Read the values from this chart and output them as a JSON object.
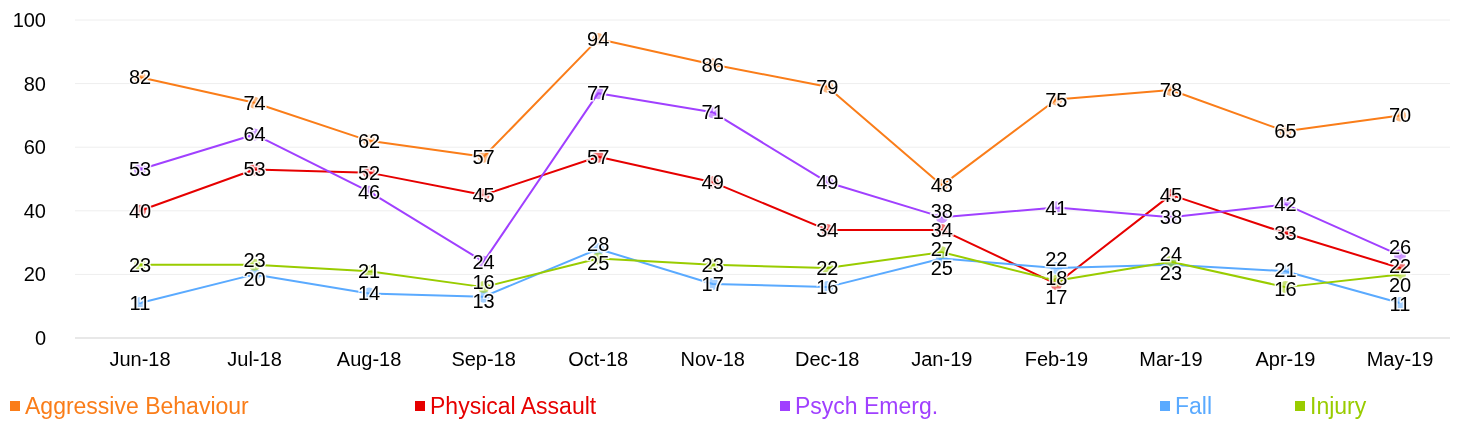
{
  "chart_data": {
    "type": "line",
    "categories": [
      "Jun-18",
      "Jul-18",
      "Aug-18",
      "Sep-18",
      "Oct-18",
      "Nov-18",
      "Dec-18",
      "Jan-19",
      "Feb-19",
      "Mar-19",
      "Apr-19",
      "May-19"
    ],
    "series": [
      {
        "name": "Aggressive Behaviour",
        "color": "#fa7d19",
        "values": [
          82,
          74,
          62,
          57,
          94,
          86,
          79,
          48,
          75,
          78,
          65,
          70
        ]
      },
      {
        "name": "Physical Assault",
        "color": "#e60000",
        "values": [
          40,
          53,
          52,
          45,
          57,
          49,
          34,
          34,
          17,
          45,
          33,
          22
        ]
      },
      {
        "name": "Psych Emerg.",
        "color": "#a040ff",
        "values": [
          53,
          64,
          46,
          24,
          77,
          71,
          49,
          38,
          41,
          38,
          42,
          26
        ]
      },
      {
        "name": "Fall",
        "color": "#5aaaff",
        "values": [
          11,
          20,
          14,
          13,
          28,
          17,
          16,
          25,
          22,
          23,
          21,
          11
        ]
      },
      {
        "name": "Injury",
        "color": "#99cc00",
        "values": [
          23,
          23,
          21,
          16,
          25,
          23,
          22,
          27,
          18,
          24,
          16,
          20
        ]
      }
    ],
    "ylim": [
      0,
      100
    ],
    "yticks": [
      0,
      20,
      40,
      60,
      80,
      100
    ],
    "grid": "y",
    "legend": "bottom",
    "marker": "circle",
    "data_labels": true
  }
}
